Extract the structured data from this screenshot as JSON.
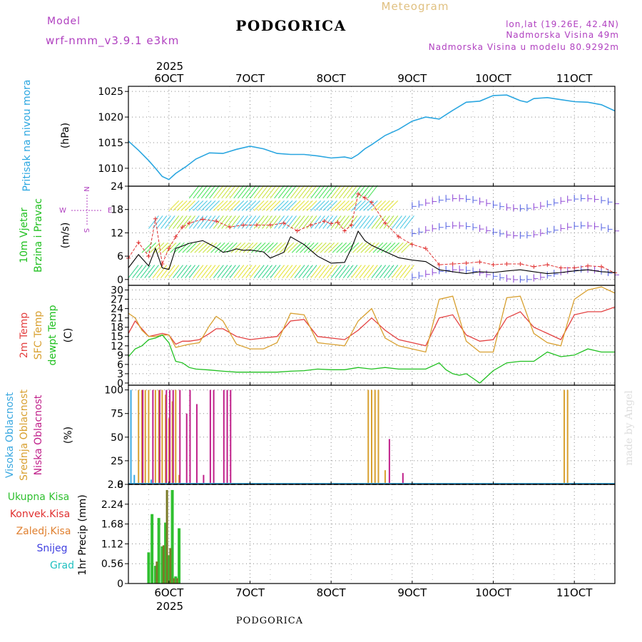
{
  "header": {
    "model_label": "Model",
    "model_name": "wrf-nmm_v3.9.1 e3km",
    "title": "PODGORICA",
    "subtitle": "Meteogram",
    "lonlat": "lon,lat (19.26E, 42.4N)",
    "altitude": "Nadmorska Visina 49m",
    "model_altitude": "Nadmorska Visina u modelu 80.9292m",
    "footer_title": "PODGORICA",
    "watermark": "made by Angel"
  },
  "colors": {
    "pressure": "#2aa6e0",
    "wind_speed": "#000000",
    "gust": "#e03030",
    "temp2m": "#e34040",
    "sfc_temp": "#d8a030",
    "dewpoint": "#20c020",
    "high_cloud": "#3aa8e0",
    "mid_cloud": "#d8a030",
    "low_cloud": "#c0208a",
    "precip_total": "#30c030",
    "precip_conv": "#e03030",
    "precip_frozen": "#e08030",
    "snow": "#4040e0",
    "grad": "#20c0c0",
    "purple_text": "#b040c0",
    "accent_title": "#e0c080"
  },
  "time_axis": {
    "year_label": "2025",
    "labels": [
      "6OCT",
      "7OCT",
      "8OCT",
      "9OCT",
      "10OCT",
      "11OCT"
    ],
    "start_hours": -12,
    "end_hours": 132
  },
  "chart_data": [
    {
      "type": "line",
      "name": "pressure",
      "ylabel": "Pritisak na nivou mora",
      "yunit": "(hPa)",
      "yticks": [
        1010,
        1015,
        1020,
        1025
      ],
      "ylim": [
        1006.5,
        1026
      ],
      "x_hours": [
        -12,
        -9,
        -6,
        -4,
        -2,
        0,
        2,
        5,
        8,
        12,
        16,
        20,
        24,
        28,
        32,
        36,
        40,
        44,
        48,
        52,
        54,
        56,
        58,
        60,
        64,
        68,
        72,
        76,
        80,
        84,
        88,
        92,
        96,
        100,
        104,
        106,
        108,
        112,
        116,
        120,
        124,
        128,
        132
      ],
      "values": [
        1015.3,
        1013.5,
        1011.5,
        1010,
        1008.4,
        1007.8,
        1009,
        1010.3,
        1011.8,
        1013,
        1012.9,
        1013.7,
        1014.3,
        1013.8,
        1012.9,
        1012.7,
        1012.7,
        1012.4,
        1012,
        1012.2,
        1011.9,
        1012.7,
        1013.8,
        1014.6,
        1016.4,
        1017.6,
        1019.2,
        1020,
        1019.6,
        1021.3,
        1022.9,
        1023.1,
        1024.2,
        1024.3,
        1023.2,
        1022.9,
        1023.6,
        1023.8,
        1023.4,
        1023,
        1022.9,
        1022.4,
        1021.2
      ]
    },
    {
      "type": "line",
      "name": "wind",
      "ylabel": "10m Vjetar Brzina i Pravac",
      "yunit": "(m/s)",
      "yticks": [
        0,
        6,
        12,
        18,
        24
      ],
      "ylim": [
        -1.5,
        24
      ],
      "compass": [
        "N",
        "W",
        "E",
        "S"
      ],
      "series": [
        {
          "name": "speed",
          "x_hours": [
            -12,
            -9,
            -6,
            -4,
            -2,
            0,
            2,
            4,
            6,
            10,
            14,
            16,
            18,
            20,
            22,
            24,
            28,
            30,
            34,
            36,
            40,
            44,
            48,
            52,
            54,
            56,
            58,
            60,
            64,
            68,
            72,
            76,
            80,
            84,
            88,
            92,
            96,
            100,
            104,
            108,
            112,
            116,
            120,
            124,
            128,
            132
          ],
          "values": [
            3,
            6.4,
            3.5,
            8,
            3,
            2.6,
            8,
            8.6,
            9.3,
            10,
            8.2,
            7,
            7.3,
            7.9,
            7.5,
            7.6,
            7.1,
            5.5,
            7,
            11,
            9,
            6,
            4.2,
            4.4,
            8,
            12.4,
            10,
            8.8,
            7.2,
            5.6,
            5,
            4.6,
            2.5,
            2,
            1.5,
            2,
            1.8,
            2.2,
            2.5,
            2,
            1.5,
            1.8,
            2.2,
            2.5,
            2,
            1.8
          ]
        },
        {
          "name": "gust",
          "x_hours": [
            -12,
            -9,
            -6,
            -4,
            -2,
            0,
            2,
            4,
            6,
            10,
            14,
            18,
            22,
            26,
            30,
            34,
            38,
            42,
            46,
            48,
            50,
            52,
            54,
            56,
            58,
            60,
            64,
            68,
            72,
            76,
            80,
            84,
            88,
            92,
            96,
            100,
            104,
            108,
            112,
            116,
            120,
            124,
            128,
            132
          ],
          "values": [
            5.5,
            9.5,
            6,
            15.6,
            4,
            8,
            11,
            13.5,
            14.5,
            15.5,
            15,
            13.5,
            14,
            14,
            14,
            14.5,
            12.5,
            14,
            15,
            14.4,
            14.7,
            12.5,
            14,
            22,
            21,
            19.8,
            14.5,
            11,
            9,
            8,
            3.8,
            4,
            4.2,
            4.5,
            3.8,
            4,
            4,
            3.3,
            3.8,
            3,
            3,
            3.5,
            3.3,
            1.7
          ]
        }
      ]
    },
    {
      "type": "line",
      "name": "temperature",
      "ylabel": [
        "2m Temp",
        "SFC Temp",
        "dewpt Temp"
      ],
      "yunit": "(C)",
      "yticks": [
        0,
        3,
        6,
        9,
        12,
        15,
        18,
        21,
        24,
        27,
        30
      ],
      "ylim": [
        -0.7,
        31.5
      ],
      "series": [
        {
          "name": "2m Temp",
          "x_hours": [
            -12,
            -10,
            -8,
            -6,
            -4,
            -2,
            0,
            2,
            4,
            6,
            9,
            12,
            14,
            16,
            20,
            24,
            28,
            32,
            36,
            40,
            44,
            48,
            52,
            56,
            60,
            64,
            68,
            72,
            76,
            80,
            84,
            88,
            92,
            96,
            100,
            104,
            108,
            112,
            116,
            120,
            124,
            128,
            132
          ],
          "values": [
            16,
            20,
            17.5,
            15,
            15.5,
            16,
            15.5,
            12.5,
            13.5,
            13.5,
            14,
            16,
            17.5,
            17.5,
            15,
            14,
            14.5,
            15,
            20,
            20.5,
            15,
            14.5,
            14,
            17,
            21,
            17,
            14,
            13,
            12,
            21,
            22,
            15.5,
            13.5,
            14,
            21,
            23,
            18,
            16,
            14,
            22,
            23,
            23,
            24.5
          ]
        },
        {
          "name": "SFC Temp",
          "x_hours": [
            -12,
            -10,
            -8,
            -6,
            -4,
            -2,
            0,
            2,
            4,
            6,
            9,
            12,
            14,
            16,
            20,
            24,
            28,
            32,
            36,
            40,
            44,
            48,
            52,
            56,
            60,
            64,
            68,
            72,
            76,
            80,
            84,
            88,
            92,
            96,
            100,
            104,
            108,
            112,
            116,
            120,
            124,
            128,
            132
          ],
          "values": [
            22.5,
            21,
            17,
            15,
            15,
            15.5,
            15.5,
            11.5,
            12,
            12.5,
            13,
            18.5,
            21.5,
            20,
            12.5,
            11,
            11,
            13,
            22.5,
            22,
            13,
            12.5,
            12,
            20,
            24,
            14.5,
            12,
            11,
            10,
            27,
            28,
            13.5,
            10,
            10,
            27.5,
            28,
            16,
            13,
            12,
            27,
            30,
            31,
            29
          ]
        },
        {
          "name": "dewpt Temp",
          "x_hours": [
            -12,
            -10,
            -8,
            -6,
            -4,
            -2,
            0,
            2,
            4,
            6,
            8,
            12,
            16,
            20,
            24,
            28,
            32,
            36,
            40,
            44,
            48,
            52,
            56,
            60,
            64,
            68,
            72,
            76,
            80,
            82,
            84,
            86,
            88,
            90,
            92,
            96,
            100,
            104,
            108,
            112,
            116,
            120,
            124,
            128,
            132
          ],
          "values": [
            8.5,
            11,
            12,
            14,
            14.5,
            15.5,
            13,
            7,
            6.5,
            5,
            4.5,
            4.2,
            3.8,
            3.5,
            3.5,
            3.5,
            3.5,
            3.8,
            4,
            4.5,
            4.3,
            4.3,
            5,
            4.5,
            5,
            4.5,
            4.5,
            4.5,
            6.5,
            4.3,
            3,
            2.5,
            3,
            1.5,
            0,
            4,
            6.5,
            7,
            7,
            10,
            8.5,
            9,
            11,
            10,
            10
          ]
        }
      ]
    },
    {
      "type": "bar",
      "name": "cloud_cover",
      "ylabel": [
        "Visoka Oblacnost",
        "Srednja Oblacnost",
        "Niska Oblacnost"
      ],
      "yunit": "(%)",
      "yticks": [
        0,
        25,
        50,
        75,
        100
      ],
      "ylim": [
        0,
        105
      ],
      "series": [
        {
          "name": "Visoka Oblacnost",
          "x_hours": [
            -11,
            -10,
            -5
          ],
          "values": [
            100,
            10,
            5
          ]
        },
        {
          "name": "Srednja Oblacnost",
          "x_hours": [
            -9,
            -8,
            -7,
            -6,
            -4,
            -3,
            -2,
            -1,
            0,
            1,
            2,
            3,
            59,
            60,
            61,
            62,
            64,
            117,
            118
          ],
          "values": [
            100,
            100,
            100,
            100,
            100,
            100,
            100,
            95,
            70,
            88,
            100,
            10,
            100,
            100,
            100,
            100,
            15,
            100,
            100
          ]
        },
        {
          "name": "Niska Oblacnost",
          "x_hours": [
            -8,
            -5,
            -3,
            -1,
            0,
            1,
            3,
            5,
            6,
            8,
            10,
            12,
            13,
            16,
            17,
            18,
            65,
            69
          ],
          "values": [
            100,
            100,
            100,
            100,
            100,
            100,
            100,
            75,
            100,
            85,
            10,
            100,
            100,
            100,
            100,
            100,
            48,
            12
          ]
        }
      ]
    },
    {
      "type": "bar",
      "name": "precipitation",
      "ylabel": "1hr Precip (mm)",
      "legend": [
        "Ukupna Kisa",
        "Konvek.Kisa",
        "Zaledj.Kisa",
        "Snijeg",
        "Grad"
      ],
      "yticks": [
        0,
        0.56,
        1.12,
        1.68,
        2.24,
        2.8
      ],
      "ylim": [
        0,
        2.8
      ],
      "series": [
        {
          "name": "Ukupna Kisa",
          "x_hours": [
            -6,
            -5,
            -4,
            -3,
            -2,
            -1,
            0,
            1,
            2,
            3
          ],
          "values": [
            0.88,
            1.96,
            0.5,
            1.85,
            1.05,
            1.72,
            0.8,
            2.64,
            0.2,
            1.56
          ]
        },
        {
          "name": "Konvek.Kisa",
          "x_hours": [
            -5,
            -4,
            -3,
            -2,
            -1,
            0,
            1,
            2,
            3
          ],
          "values": [
            0.0,
            0.62,
            0.0,
            1.08,
            2.64,
            1.0,
            0.15,
            0.15,
            0.0
          ]
        }
      ]
    }
  ]
}
